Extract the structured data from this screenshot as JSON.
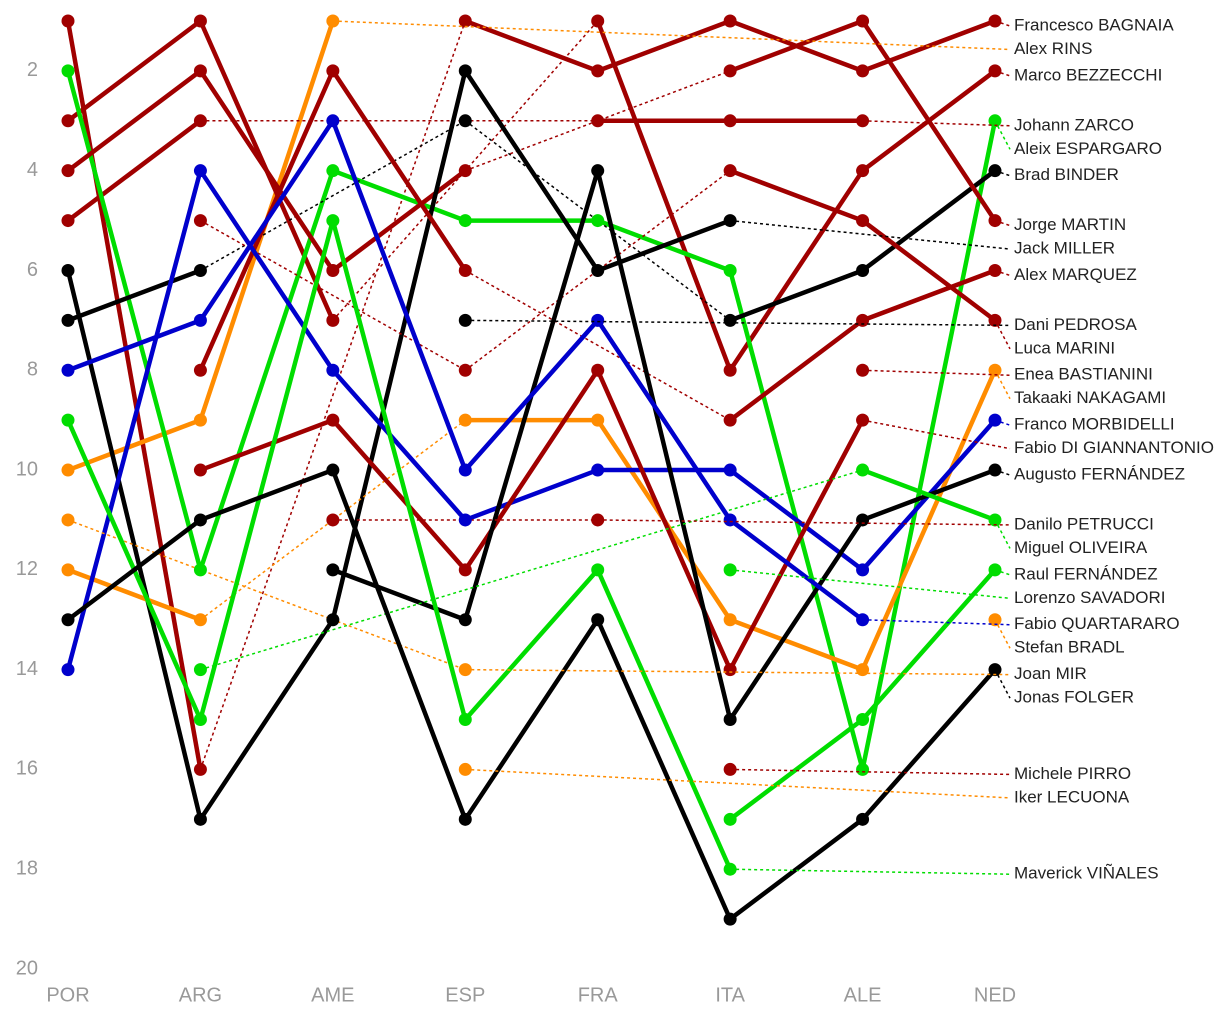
{
  "chart_data": {
    "type": "bump",
    "categories": [
      "POR",
      "ARG",
      "AME",
      "ESP",
      "FRA",
      "ITA",
      "ALE",
      "NED"
    ],
    "ylim": [
      1,
      20
    ],
    "y_inverted": true,
    "yticks": [
      2,
      4,
      6,
      8,
      10,
      12,
      14,
      16,
      18,
      20
    ],
    "series": [
      {
        "name": "Francesco BAGNAIA",
        "color": "#a00000",
        "values": [
          1,
          16,
          null,
          1,
          2,
          1,
          2,
          1
        ]
      },
      {
        "name": "Alex RINS",
        "color": "#ff8c00",
        "values": [
          10,
          9,
          1,
          null,
          null,
          null,
          null,
          null
        ]
      },
      {
        "name": "Marco BEZZECCHI",
        "color": "#a00000",
        "values": [
          3,
          1,
          7,
          null,
          1,
          8,
          4,
          2
        ]
      },
      {
        "name": "Johann ZARCO",
        "color": "#a00000",
        "values": [
          5,
          3,
          null,
          null,
          3,
          3,
          3,
          null
        ]
      },
      {
        "name": "Aleix ESPARGARO",
        "color": "#00dd00",
        "values": [
          2,
          12,
          4,
          5,
          5,
          6,
          16,
          3
        ]
      },
      {
        "name": "Brad BINDER",
        "color": "#000000",
        "values": [
          7,
          6,
          null,
          3,
          null,
          7,
          6,
          4
        ]
      },
      {
        "name": "Jorge MARTIN",
        "color": "#a00000",
        "values": [
          4,
          2,
          6,
          4,
          null,
          2,
          1,
          5
        ]
      },
      {
        "name": "Jack MILLER",
        "color": "#000000",
        "values": [
          6,
          17,
          13,
          2,
          6,
          5,
          null,
          null
        ]
      },
      {
        "name": "Alex MARQUEZ",
        "color": "#a00000",
        "values": [
          null,
          8,
          2,
          6,
          null,
          9,
          7,
          6
        ]
      },
      {
        "name": "Dani PEDROSA",
        "color": "#000000",
        "values": [
          null,
          null,
          null,
          7,
          null,
          null,
          null,
          null
        ]
      },
      {
        "name": "Luca MARINI",
        "color": "#a00000",
        "values": [
          null,
          5,
          null,
          8,
          null,
          4,
          5,
          7
        ]
      },
      {
        "name": "Enea BASTIANINI",
        "color": "#a00000",
        "values": [
          null,
          null,
          null,
          null,
          null,
          null,
          8,
          null
        ]
      },
      {
        "name": "Takaaki NAKAGAMI",
        "color": "#ff8c00",
        "values": [
          12,
          13,
          null,
          9,
          9,
          13,
          14,
          8
        ]
      },
      {
        "name": "Franco MORBIDELLI",
        "color": "#0000cc",
        "values": [
          14,
          4,
          8,
          11,
          10,
          10,
          12,
          9
        ]
      },
      {
        "name": "Fabio DI GIANNANTONIO",
        "color": "#a00000",
        "values": [
          null,
          10,
          9,
          12,
          8,
          14,
          9,
          null
        ]
      },
      {
        "name": "Augusto FERNÁNDEZ",
        "color": "#000000",
        "values": [
          null,
          null,
          12,
          13,
          4,
          15,
          11,
          10
        ]
      },
      {
        "name": "Danilo PETRUCCI",
        "color": "#a00000",
        "values": [
          null,
          null,
          11,
          null,
          11,
          null,
          null,
          null
        ]
      },
      {
        "name": "Miguel OLIVEIRA",
        "color": "#00dd00",
        "values": [
          null,
          14,
          null,
          null,
          null,
          null,
          10,
          11
        ]
      },
      {
        "name": "Joan MIR",
        "color": "#ff8c00",
        "values": [
          11,
          null,
          null,
          14,
          null,
          null,
          null,
          null
        ]
      },
      {
        "name": "Raul FERNÁNDEZ",
        "color": "#00dd00",
        "values": [
          null,
          null,
          null,
          null,
          null,
          17,
          15,
          12
        ]
      },
      {
        "name": "Lorenzo SAVADORI",
        "color": "#00dd00",
        "values": [
          null,
          null,
          null,
          null,
          null,
          12,
          null,
          null
        ]
      },
      {
        "name": "Maverick VIÑALES",
        "color": "#00dd00",
        "values": [
          9,
          15,
          5,
          15,
          12,
          18,
          null,
          null
        ]
      },
      {
        "name": "Fabio QUARTARARO",
        "color": "#0000cc",
        "values": [
          8,
          7,
          3,
          10,
          7,
          11,
          13,
          null
        ]
      },
      {
        "name": "Stefan BRADL",
        "color": "#ff8c00",
        "values": [
          null,
          null,
          null,
          null,
          null,
          null,
          null,
          13
        ]
      },
      {
        "name": "Jonas FOLGER",
        "color": "#000000",
        "values": [
          13,
          11,
          10,
          17,
          13,
          19,
          17,
          14
        ]
      },
      {
        "name": "Michele PIRRO",
        "color": "#a00000",
        "values": [
          null,
          null,
          null,
          null,
          null,
          16,
          null,
          null
        ]
      },
      {
        "name": "Iker LECUONA",
        "color": "#ff8c00",
        "values": [
          null,
          null,
          null,
          16,
          null,
          null,
          null,
          null
        ]
      }
    ]
  }
}
